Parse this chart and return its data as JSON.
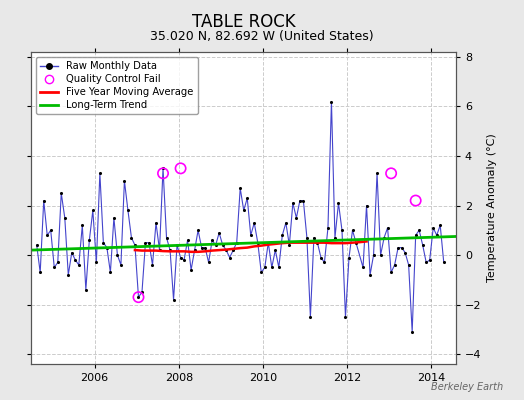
{
  "title": "TABLE ROCK",
  "subtitle": "35.020 N, 82.692 W (United States)",
  "ylabel": "Temperature Anomaly (°C)",
  "watermark": "Berkeley Earth",
  "background_color": "#e8e8e8",
  "plot_bg_color": "#ffffff",
  "ylim": [
    -4.4,
    8.2
  ],
  "xlim_start": 2004.5,
  "xlim_end": 2014.58,
  "raw_color": "#4444cc",
  "raw_marker_color": "#000000",
  "ma_color": "#ff0000",
  "trend_color": "#00bb00",
  "qc_color": "#ff00ff",
  "raw_data": [
    0.4,
    -0.7,
    2.2,
    0.8,
    1.0,
    -0.5,
    -0.3,
    2.5,
    1.5,
    -0.8,
    0.1,
    -0.2,
    -0.4,
    1.2,
    -1.4,
    0.6,
    1.8,
    -0.3,
    3.3,
    0.5,
    0.3,
    -0.7,
    1.5,
    0.0,
    -0.4,
    3.0,
    1.8,
    0.7,
    0.4,
    -1.7,
    -1.5,
    0.5,
    0.5,
    -0.4,
    1.3,
    0.2,
    3.5,
    0.7,
    0.2,
    -1.8,
    0.4,
    -0.1,
    -0.2,
    0.6,
    -0.6,
    0.2,
    1.0,
    0.3,
    0.3,
    -0.3,
    0.6,
    0.4,
    0.9,
    0.4,
    0.2,
    -0.1,
    0.2,
    0.5,
    2.7,
    1.8,
    2.3,
    0.8,
    1.3,
    0.5,
    -0.7,
    -0.5,
    0.5,
    -0.5,
    0.2,
    -0.5,
    0.8,
    1.3,
    0.4,
    2.1,
    1.5,
    2.2,
    2.2,
    0.7,
    -2.5,
    0.7,
    0.5,
    -0.1,
    -0.3,
    1.1,
    6.2,
    0.7,
    2.1,
    1.0,
    -2.5,
    -0.1,
    1.0,
    0.5,
    -0.5,
    2.0,
    -0.8,
    0.0,
    3.3,
    0.0,
    0.7,
    1.1,
    -0.7,
    -0.4,
    0.3,
    0.3,
    0.1,
    -0.4,
    -3.1,
    0.8,
    1.0,
    0.4,
    -0.3,
    -0.2,
    1.1,
    0.8,
    1.2,
    -0.3
  ],
  "raw_times": [
    2004.625,
    2004.708,
    2004.792,
    2004.875,
    2004.958,
    2005.042,
    2005.125,
    2005.208,
    2005.292,
    2005.375,
    2005.458,
    2005.542,
    2005.625,
    2005.708,
    2005.792,
    2005.875,
    2005.958,
    2006.042,
    2006.125,
    2006.208,
    2006.292,
    2006.375,
    2006.458,
    2006.542,
    2006.625,
    2006.708,
    2006.792,
    2006.875,
    2006.958,
    2007.042,
    2007.125,
    2007.208,
    2007.292,
    2007.375,
    2007.458,
    2007.542,
    2007.625,
    2007.708,
    2007.792,
    2007.875,
    2007.958,
    2008.042,
    2008.125,
    2008.208,
    2008.292,
    2008.375,
    2008.458,
    2008.542,
    2008.625,
    2008.708,
    2008.792,
    2008.875,
    2008.958,
    2009.042,
    2009.125,
    2009.208,
    2009.292,
    2009.375,
    2009.458,
    2009.542,
    2009.625,
    2009.708,
    2009.792,
    2009.875,
    2009.958,
    2010.042,
    2010.125,
    2010.208,
    2010.292,
    2010.375,
    2010.458,
    2010.542,
    2010.625,
    2010.708,
    2010.792,
    2010.875,
    2010.958,
    2011.042,
    2011.125,
    2011.208,
    2011.292,
    2011.375,
    2011.458,
    2011.542,
    2011.625,
    2011.708,
    2011.792,
    2011.875,
    2011.958,
    2012.042,
    2012.125,
    2012.208,
    2012.375,
    2012.458,
    2012.542,
    2012.625,
    2012.708,
    2012.792,
    2012.875,
    2012.958,
    2013.042,
    2013.125,
    2013.208,
    2013.292,
    2013.375,
    2013.458,
    2013.542,
    2013.625,
    2013.708,
    2013.792,
    2013.875,
    2013.958,
    2014.042,
    2014.125,
    2014.208,
    2014.292
  ],
  "qc_times": [
    2007.042,
    2007.625,
    2008.042,
    2013.042,
    2013.625
  ],
  "qc_values": [
    -1.7,
    3.3,
    3.5,
    3.3,
    2.2
  ],
  "ma_times": [
    2006.958,
    2007.125,
    2007.292,
    2007.458,
    2007.625,
    2007.792,
    2007.958,
    2008.125,
    2008.292,
    2008.458,
    2008.625,
    2008.792,
    2008.958,
    2009.125,
    2009.292,
    2009.458,
    2009.625,
    2009.792,
    2009.958,
    2010.125,
    2010.292,
    2010.458,
    2010.625,
    2010.792,
    2010.958,
    2011.125,
    2011.292,
    2011.458,
    2011.625,
    2011.792,
    2011.958,
    2012.125,
    2012.292,
    2012.458
  ],
  "ma_values": [
    0.2,
    0.18,
    0.18,
    0.18,
    0.16,
    0.15,
    0.15,
    0.15,
    0.13,
    0.13,
    0.15,
    0.18,
    0.2,
    0.22,
    0.25,
    0.28,
    0.3,
    0.35,
    0.38,
    0.42,
    0.45,
    0.48,
    0.5,
    0.5,
    0.5,
    0.5,
    0.5,
    0.5,
    0.48,
    0.48,
    0.48,
    0.5,
    0.52,
    0.55
  ],
  "trend_times": [
    2004.5,
    2014.58
  ],
  "trend_values": [
    0.2,
    0.75
  ],
  "xticks": [
    2006,
    2008,
    2010,
    2012,
    2014
  ],
  "yticks": [
    -4,
    -2,
    0,
    2,
    4,
    6,
    8
  ],
  "title_fontsize": 12,
  "subtitle_fontsize": 9,
  "tick_fontsize": 8,
  "label_fontsize": 8
}
